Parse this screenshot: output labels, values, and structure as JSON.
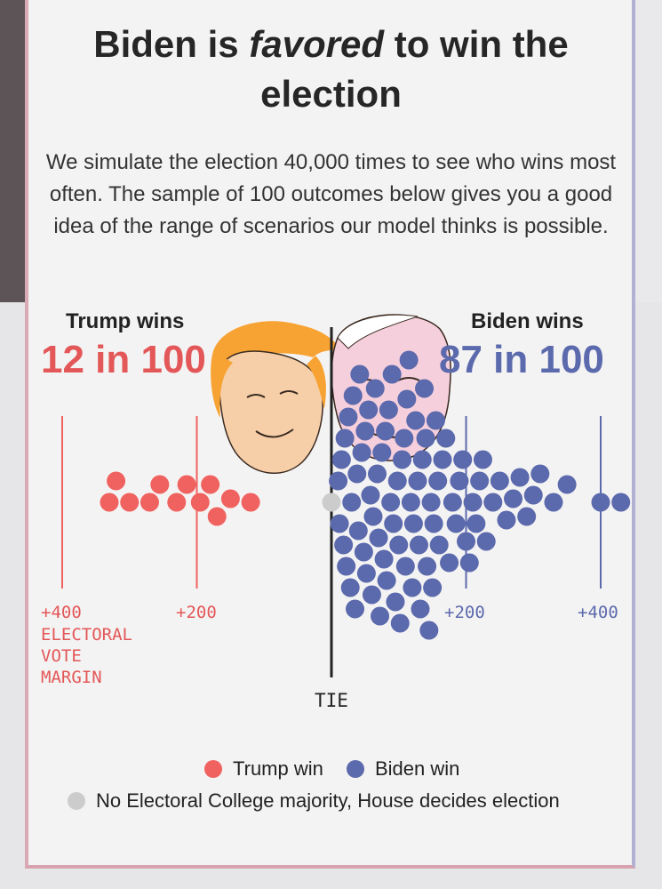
{
  "header": {
    "title_pre": "Biden is",
    "title_em": "favored",
    "title_post": "to win the election",
    "subtitle": "We simulate the election 40,000 times to see who wins most often. The sample of 100 outcomes below gives you a good idea of the range of scenarios our model thinks is possible."
  },
  "trump": {
    "label": "Trump wins",
    "odds": "12 in 100"
  },
  "biden": {
    "label": "Biden wins",
    "odds": "87 in 100"
  },
  "axis": {
    "tick_left_400": "+400",
    "tick_left_200": "+200",
    "tick_right_200": "+200",
    "tick_right_400": "+400",
    "axis_title": [
      "ELECTORAL",
      "VOTE",
      "MARGIN"
    ],
    "tie_label": "TIE"
  },
  "legend": {
    "trump_win": "Trump win",
    "biden_win": "Biden win",
    "no_majority": "No Electoral College majority, House decides election"
  },
  "colors": {
    "trump": "#f0625f",
    "biden": "#5b69ad",
    "tie": "#cccccc",
    "trump_text": "#e35758",
    "biden_text": "#5b69ad"
  },
  "chart_data": {
    "type": "scatter",
    "description_axis": "electoral vote margin",
    "counts": {
      "trump": 12,
      "biden": 87,
      "tie": 1
    },
    "trump_margins": [
      -330,
      -320,
      -300,
      -270,
      -255,
      -230,
      -215,
      -195,
      -180,
      -170,
      -150,
      -120
    ],
    "tie_margins": [
      0
    ],
    "biden_margins": [
      10,
      12,
      15,
      18,
      20,
      22,
      25,
      28,
      30,
      32,
      35,
      38,
      40,
      42,
      45,
      48,
      50,
      52,
      55,
      58,
      60,
      62,
      65,
      68,
      70,
      72,
      75,
      78,
      80,
      82,
      85,
      88,
      90,
      92,
      95,
      98,
      100,
      102,
      105,
      108,
      110,
      112,
      115,
      118,
      120,
      122,
      125,
      128,
      130,
      132,
      135,
      138,
      140,
      142,
      145,
      148,
      150,
      152,
      155,
      158,
      160,
      165,
      170,
      175,
      180,
      185,
      190,
      195,
      200,
      205,
      210,
      215,
      220,
      225,
      230,
      240,
      250,
      260,
      270,
      280,
      290,
      300,
      310,
      330,
      350,
      400,
      430
    ],
    "xlim": [
      -400,
      430
    ]
  }
}
